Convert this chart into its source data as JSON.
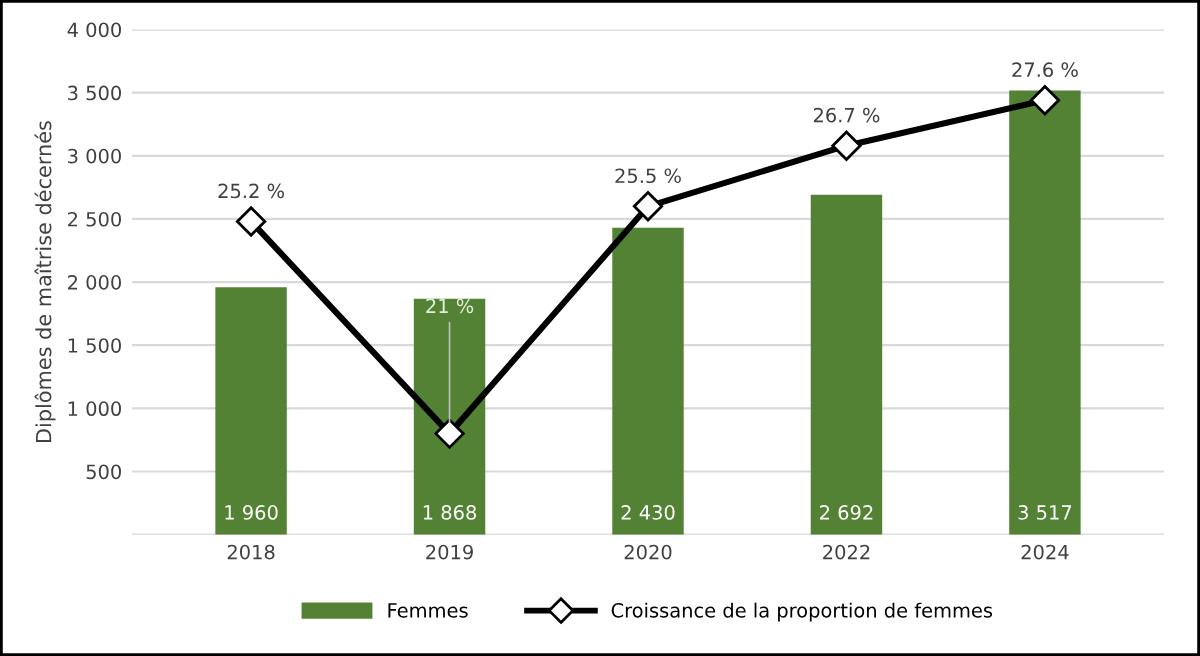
{
  "chart_data": {
    "type": "bar",
    "ylabel": "Diplômes de maîtrise décernés",
    "categories": [
      "2018",
      "2019",
      "2020",
      "2022",
      "2024"
    ],
    "series": [
      {
        "name": "Femmes",
        "color": "#548235",
        "values": [
          1960,
          1868,
          2430,
          2692,
          3517
        ],
        "value_labels": [
          "1 960",
          "1 868",
          "2 430",
          "2 692",
          "3 517"
        ]
      },
      {
        "name": "Croissance de la proportion de femmes",
        "type": "line",
        "axis": "y2",
        "color": "#000000",
        "values": [
          25.2,
          21,
          25.5,
          26.7,
          27.6
        ],
        "value_labels": [
          "25.2 %",
          "21 %",
          "25.5 %",
          "26.7 %",
          "27.6 %"
        ]
      }
    ],
    "ylim": [
      0,
      4000
    ],
    "yticks": [
      {
        "value": 0,
        "label": null
      },
      {
        "value": 500,
        "label": "500"
      },
      {
        "value": 1000,
        "label": "1 000"
      },
      {
        "value": 1500,
        "label": "1 500"
      },
      {
        "value": 2000,
        "label": "2 000"
      },
      {
        "value": 2500,
        "label": "2 500"
      },
      {
        "value": 3000,
        "label": "3 000"
      },
      {
        "value": 3500,
        "label": "3 500"
      },
      {
        "value": 4000,
        "label": "4 000"
      }
    ],
    "y2lim": [
      19,
      29
    ],
    "grid": "y",
    "legend": "bottom",
    "marker": "diamond",
    "line_style": "solid"
  }
}
